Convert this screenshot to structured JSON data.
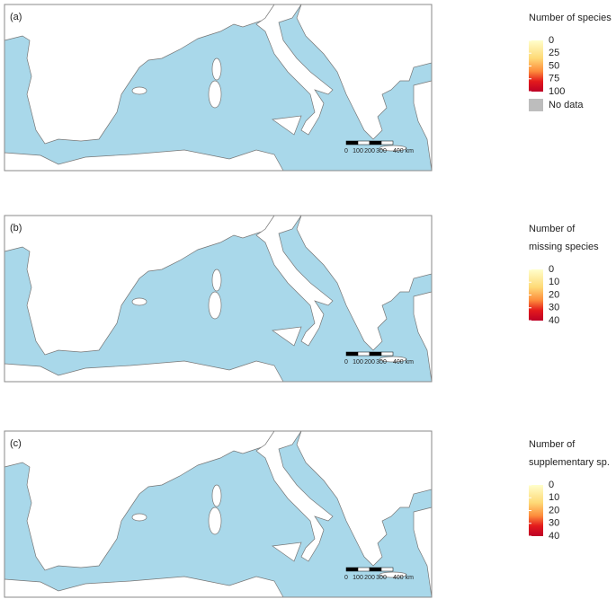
{
  "panels": [
    {
      "label": "(a)",
      "legend": {
        "title": [
          "Number of species"
        ],
        "ticks": [
          0,
          25,
          50,
          75,
          100
        ],
        "no_data": "No data"
      }
    },
    {
      "label": "(b)",
      "legend": {
        "title": [
          "Number of",
          "missing species"
        ],
        "ticks": [
          0,
          10,
          20,
          30,
          40
        ]
      }
    },
    {
      "label": "(c)",
      "legend": {
        "title": [
          "Number of",
          "supplementary sp."
        ],
        "ticks": [
          0,
          10,
          20,
          30,
          40
        ]
      }
    }
  ],
  "scale_bar": {
    "labels": [
      "0",
      "100",
      "200",
      "300",
      "400 km"
    ]
  }
}
